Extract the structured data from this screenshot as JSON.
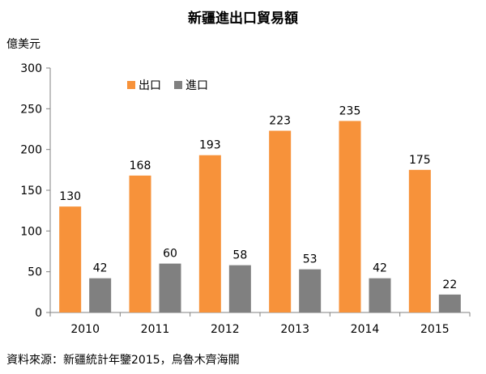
{
  "chart_data": {
    "type": "bar",
    "title": "新疆進出口貿易額",
    "ylabel": "億美元",
    "categories": [
      "2010",
      "2011",
      "2012",
      "2013",
      "2014",
      "2015"
    ],
    "series": [
      {
        "name": "出口",
        "color": "#F7923A",
        "values": [
          130,
          168,
          193,
          223,
          235,
          175
        ]
      },
      {
        "name": "進口",
        "color": "#808080",
        "values": [
          42,
          60,
          58,
          53,
          42,
          22
        ]
      }
    ],
    "ylim": [
      0,
      300
    ],
    "yticks": [
      "0",
      "50",
      "100",
      "150",
      "200",
      "250",
      "300"
    ],
    "grid": false,
    "legend": "top-left"
  },
  "source": "資料來源：新疆統計年鑒2015，烏魯木齊海關"
}
